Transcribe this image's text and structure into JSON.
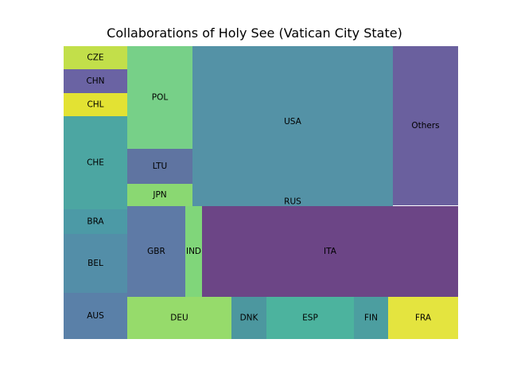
{
  "chart_data": {
    "type": "treemap",
    "title": "Collaborations of Holy See (Vatican City State)",
    "items": [
      {
        "label": "CZE",
        "value": 4,
        "color": "#c2df4a"
      },
      {
        "label": "CHN",
        "value": 4,
        "color": "#6a63a3"
      },
      {
        "label": "CHL",
        "value": 4,
        "color": "#e3e233"
      },
      {
        "label": "CHE",
        "value": 16,
        "color": "#4ca6a2"
      },
      {
        "label": "BRA",
        "value": 4,
        "color": "#4c9aa6"
      },
      {
        "label": "BEL",
        "value": 10,
        "color": "#538ea8"
      },
      {
        "label": "AUS",
        "value": 8,
        "color": "#5a80a8"
      },
      {
        "label": "POL",
        "value": 17,
        "color": "#77d088"
      },
      {
        "label": "LTU",
        "value": 6,
        "color": "#5f74a1"
      },
      {
        "label": "JPN",
        "value": 4,
        "color": "#8ad872"
      },
      {
        "label": "USA",
        "value": 81,
        "color": "#5492a6"
      },
      {
        "label": "RUS",
        "value": 0.2,
        "color": "#5492a6"
      },
      {
        "label": "Others",
        "value": 24,
        "color": "#6a609e"
      },
      {
        "label": "GBR",
        "value": 12,
        "color": "#5e7aa6"
      },
      {
        "label": "IND",
        "value": 3,
        "color": "#80d67a"
      },
      {
        "label": "ITA",
        "value": 60,
        "color": "#6c4586"
      },
      {
        "label": "DEU",
        "value": 11,
        "color": "#96db6b"
      },
      {
        "label": "DNK",
        "value": 4,
        "color": "#4c979f"
      },
      {
        "label": "ESP",
        "value": 10,
        "color": "#4cb39e"
      },
      {
        "label": "FIN",
        "value": 4,
        "color": "#4c9ea0"
      },
      {
        "label": "FRA",
        "value": 7,
        "color": "#e4e43f"
      }
    ]
  }
}
